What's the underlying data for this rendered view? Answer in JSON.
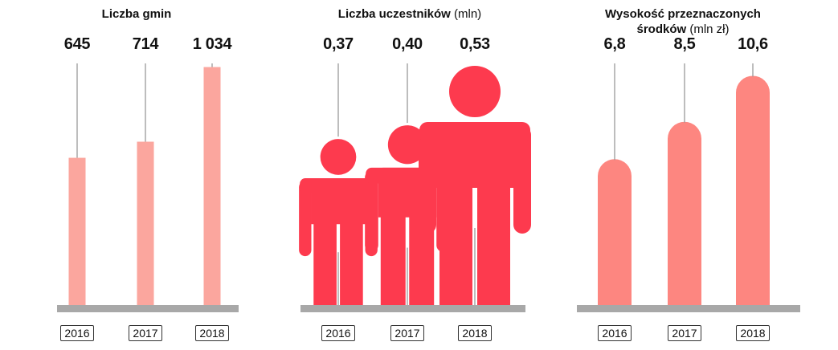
{
  "colors": {
    "bar_light": "#fba69e",
    "figure_red": "#fd3a4e",
    "bar_salmon": "#fd8680",
    "baseline": "#a8a8a8",
    "leader": "#999999"
  },
  "chart_data": [
    {
      "type": "bar",
      "title": "Liczba gmin",
      "unit": "",
      "categories": [
        "2016",
        "2017",
        "2018"
      ],
      "values": [
        645,
        714,
        1034
      ],
      "value_labels": [
        "645",
        "714",
        "1 034"
      ],
      "ylim": [
        0,
        1170
      ],
      "grid": false
    },
    {
      "type": "bar",
      "mark": "person-icon",
      "title": "Liczba uczestników",
      "unit": "(mln)",
      "categories": [
        "2016",
        "2017",
        "2018"
      ],
      "values": [
        0.37,
        0.4,
        0.53
      ],
      "value_labels": [
        "0,37",
        "0,40",
        "0,53"
      ],
      "grid": false
    },
    {
      "type": "bar",
      "mark": "rounded-bar",
      "title_line1": "Wysokość przeznaczonych",
      "title_line2": "środków",
      "unit": "(mln zł)",
      "categories": [
        "2016",
        "2017",
        "2018"
      ],
      "values": [
        6.8,
        8.5,
        10.6
      ],
      "value_labels": [
        "6,8",
        "8,5",
        "10,6"
      ],
      "ylim": [
        0,
        12.3
      ],
      "grid": false
    }
  ]
}
